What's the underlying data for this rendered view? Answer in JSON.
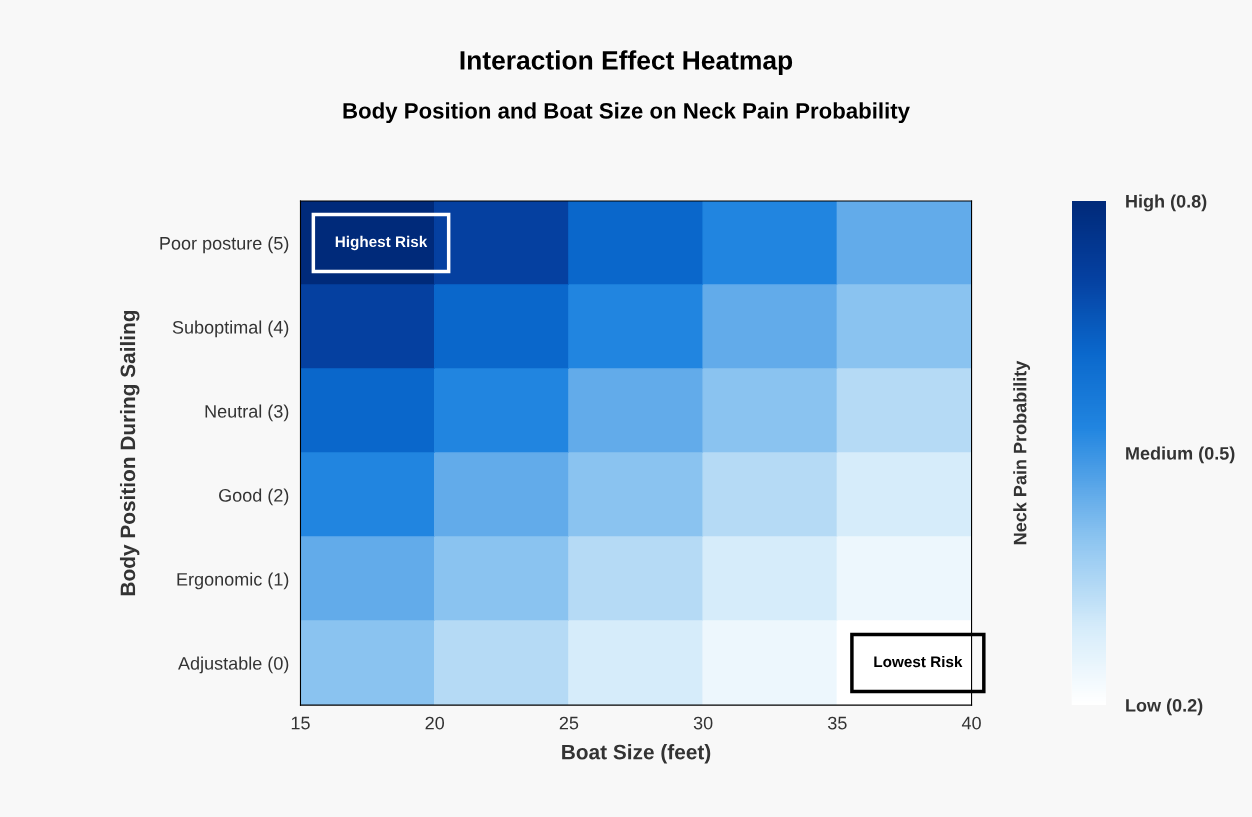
{
  "chart_data": {
    "type": "heatmap",
    "title": "Interaction Effect Heatmap",
    "subtitle": "Body Position and Boat Size on Neck Pain Probability",
    "xlabel": "Boat Size (feet)",
    "ylabel": "Body Position During Sailing",
    "clabel": "Neck Pain Probability",
    "y_categories": [
      "Poor posture (5)",
      "Suboptimal (4)",
      "Neutral (3)",
      "Good (2)",
      "Ergonomic (1)",
      "Adjustable (0)"
    ],
    "cells": [
      [
        0.8,
        0.71,
        0.62,
        0.53,
        0.45
      ],
      [
        0.71,
        0.62,
        0.53,
        0.45,
        0.4
      ],
      [
        0.62,
        0.53,
        0.45,
        0.4,
        0.34
      ],
      [
        0.53,
        0.45,
        0.4,
        0.34,
        0.29
      ],
      [
        0.45,
        0.4,
        0.34,
        0.29,
        0.24
      ],
      [
        0.4,
        0.34,
        0.29,
        0.24,
        0.2
      ]
    ],
    "xlim": [
      15,
      40
    ],
    "xticks": [
      15,
      20,
      25,
      30,
      35,
      40
    ],
    "clim": [
      0.2,
      0.8
    ],
    "cticks": [
      {
        "value": 0.2,
        "label": "Low (0.2)"
      },
      {
        "value": 0.5,
        "label": "Medium (0.5)"
      },
      {
        "value": 0.8,
        "label": "High (0.8)"
      }
    ],
    "annotations": [
      "Highest Risk",
      "Lowest Risk"
    ],
    "grid": false
  }
}
